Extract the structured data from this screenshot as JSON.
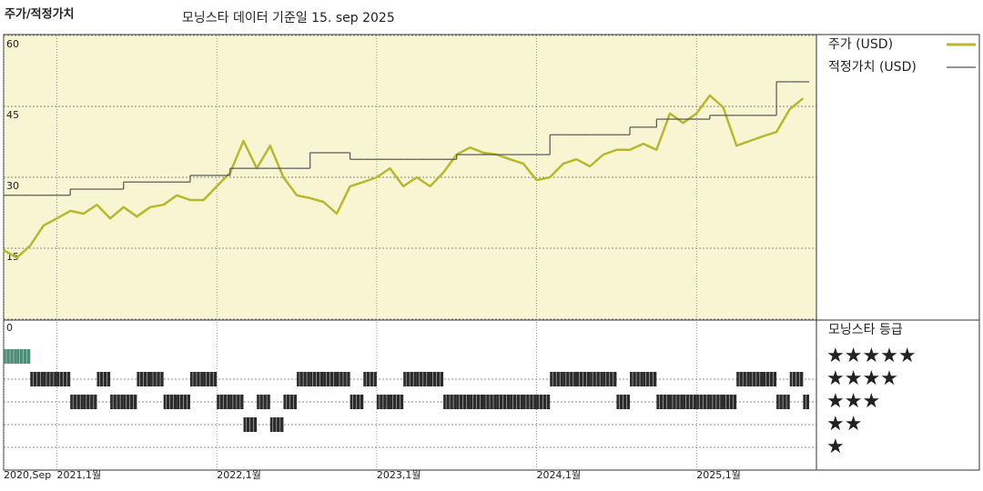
{
  "chart_data": [
    {
      "type": "line",
      "title": "주가/적정가치",
      "subtitle": "모닝스타 데이터 기준일 15. sep 2025",
      "x": [
        "2020-09",
        "2020-10",
        "2020-11",
        "2020-12",
        "2021-01",
        "2021-02",
        "2021-03",
        "2021-04",
        "2021-05",
        "2021-06",
        "2021-07",
        "2021-08",
        "2021-09",
        "2021-10",
        "2021-11",
        "2021-12",
        "2022-01",
        "2022-02",
        "2022-03",
        "2022-04",
        "2022-05",
        "2022-06",
        "2022-07",
        "2022-08",
        "2022-09",
        "2022-10",
        "2022-11",
        "2022-12",
        "2023-01",
        "2023-02",
        "2023-03",
        "2023-04",
        "2023-05",
        "2023-06",
        "2023-07",
        "2023-08",
        "2023-09",
        "2023-10",
        "2023-11",
        "2023-12",
        "2024-01",
        "2024-02",
        "2024-03",
        "2024-04",
        "2024-05",
        "2024-06",
        "2024-07",
        "2024-08",
        "2024-09",
        "2024-10",
        "2024-11",
        "2024-12",
        "2025-01",
        "2025-02",
        "2025-03",
        "2025-04",
        "2025-05",
        "2025-06",
        "2025-07",
        "2025-08",
        "2025-09"
      ],
      "series": [
        {
          "name": "주가 (USD)",
          "color": "#b8b82c",
          "style": "line",
          "values": [
            14.6,
            13,
            15.6,
            19.8,
            21.3,
            22.9,
            22.3,
            24.2,
            21.3,
            23.7,
            21.7,
            23.7,
            24.2,
            26.2,
            25.2,
            25.2,
            28.1,
            31,
            37.7,
            31.9,
            36.7,
            30,
            26.2,
            25.6,
            24.8,
            22.3,
            28.1,
            29,
            30,
            31.9,
            28.1,
            30,
            28.1,
            31,
            34.8,
            36.3,
            35.2,
            34.8,
            33.8,
            32.9,
            29.4,
            30,
            32.9,
            33.8,
            32.3,
            34.8,
            35.8,
            35.8,
            37.1,
            35.8,
            43.5,
            41.5,
            43.5,
            47.3,
            44.8,
            36.7,
            37.7,
            38.7,
            39.6,
            44.4,
            46.7
          ]
        },
        {
          "name": "적정가치 (USD)",
          "color": "#555555",
          "style": "step",
          "values": [
            26.2,
            26.2,
            26.2,
            26.2,
            26.2,
            27.5,
            27.5,
            27.5,
            27.5,
            29,
            29,
            29,
            29,
            29,
            30.4,
            30.4,
            30.4,
            31.9,
            31.9,
            31.9,
            31.9,
            31.9,
            31.9,
            35.2,
            35.2,
            35.2,
            33.8,
            33.8,
            33.8,
            33.8,
            33.8,
            33.8,
            33.8,
            33.8,
            34.8,
            34.8,
            34.8,
            34.8,
            34.8,
            34.8,
            34.8,
            39,
            39,
            39,
            39,
            39,
            39,
            40.6,
            40.6,
            42.3,
            42.3,
            42.3,
            42.3,
            43.1,
            43.1,
            43.1,
            43.1,
            43.1,
            50.2,
            50.2,
            50.2
          ]
        }
      ],
      "xlim": [
        "2020-09",
        "2025-10"
      ],
      "xticks": [
        {
          "value": "2020-09",
          "label": "2020,Sep"
        },
        {
          "value": "2021-01",
          "label": "2021,1월"
        },
        {
          "value": "2022-01",
          "label": "2022,1월"
        },
        {
          "value": "2023-01",
          "label": "2023,1월"
        },
        {
          "value": "2024-01",
          "label": "2024,1월"
        },
        {
          "value": "2025-01",
          "label": "2025,1월"
        }
      ],
      "ylim": [
        0,
        60
      ],
      "yticks": [
        0,
        15,
        30,
        45,
        60
      ],
      "grid": true,
      "background": "#f8f5d3"
    },
    {
      "type": "rating",
      "title": "모닝스타 등급",
      "values": [
        5,
        5,
        4,
        4,
        4,
        3,
        3,
        4,
        3,
        3,
        4,
        4,
        3,
        3,
        4,
        4,
        3,
        3,
        2,
        3,
        2,
        3,
        4,
        4,
        4,
        4,
        3,
        4,
        3,
        3,
        4,
        4,
        4,
        3,
        3,
        3,
        3,
        3,
        3,
        3,
        3,
        4,
        4,
        4,
        4,
        4,
        3,
        4,
        4,
        3,
        3,
        3,
        3,
        3,
        3,
        4,
        4,
        4,
        3,
        4,
        3
      ],
      "levels": [
        {
          "value": 5,
          "label": "★★★★★",
          "color": "#4f8c78"
        },
        {
          "value": 4,
          "label": "★★★★",
          "color": "#2b2b2b"
        },
        {
          "value": 3,
          "label": "★★★",
          "color": "#2b2b2b"
        },
        {
          "value": 2,
          "label": "★★",
          "color": "#2b2b2b"
        },
        {
          "value": 1,
          "label": "★",
          "color": "#2b2b2b"
        }
      ]
    }
  ]
}
